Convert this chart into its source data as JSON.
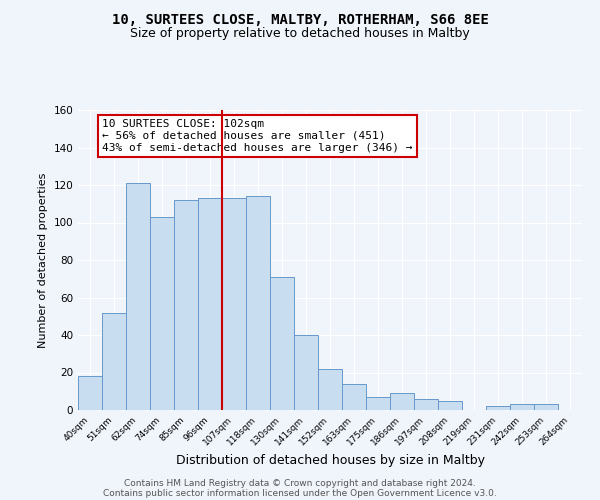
{
  "title1": "10, SURTEES CLOSE, MALTBY, ROTHERHAM, S66 8EE",
  "title2": "Size of property relative to detached houses in Maltby",
  "xlabel": "Distribution of detached houses by size in Maltby",
  "ylabel": "Number of detached properties",
  "bar_labels": [
    "40sqm",
    "51sqm",
    "62sqm",
    "74sqm",
    "85sqm",
    "96sqm",
    "107sqm",
    "118sqm",
    "130sqm",
    "141sqm",
    "152sqm",
    "163sqm",
    "175sqm",
    "186sqm",
    "197sqm",
    "208sqm",
    "219sqm",
    "231sqm",
    "242sqm",
    "253sqm",
    "264sqm"
  ],
  "bar_heights": [
    18,
    52,
    121,
    103,
    112,
    113,
    113,
    114,
    71,
    40,
    22,
    14,
    7,
    9,
    6,
    5,
    0,
    2,
    3,
    3,
    0
  ],
  "bar_color": "#c9ddf0",
  "bar_edge_color": "#6699cc",
  "ylim": [
    0,
    160
  ],
  "yticks": [
    0,
    20,
    40,
    60,
    80,
    100,
    120,
    140,
    160
  ],
  "vline_x_index": 6,
  "vline_color": "#cc0000",
  "annotation_text": "10 SURTEES CLOSE: 102sqm\n← 56% of detached houses are smaller (451)\n43% of semi-detached houses are larger (346) →",
  "annotation_box_color": "#ffffff",
  "annotation_box_edge": "#cc0000",
  "footer1": "Contains HM Land Registry data © Crown copyright and database right 2024.",
  "footer2": "Contains public sector information licensed under the Open Government Licence v3.0.",
  "bg_color": "#f0f4fb",
  "title1_fontsize": 10,
  "title2_fontsize": 9,
  "xlabel_fontsize": 9,
  "ylabel_fontsize": 8,
  "annotation_fontsize": 8,
  "footer_fontsize": 6.5
}
